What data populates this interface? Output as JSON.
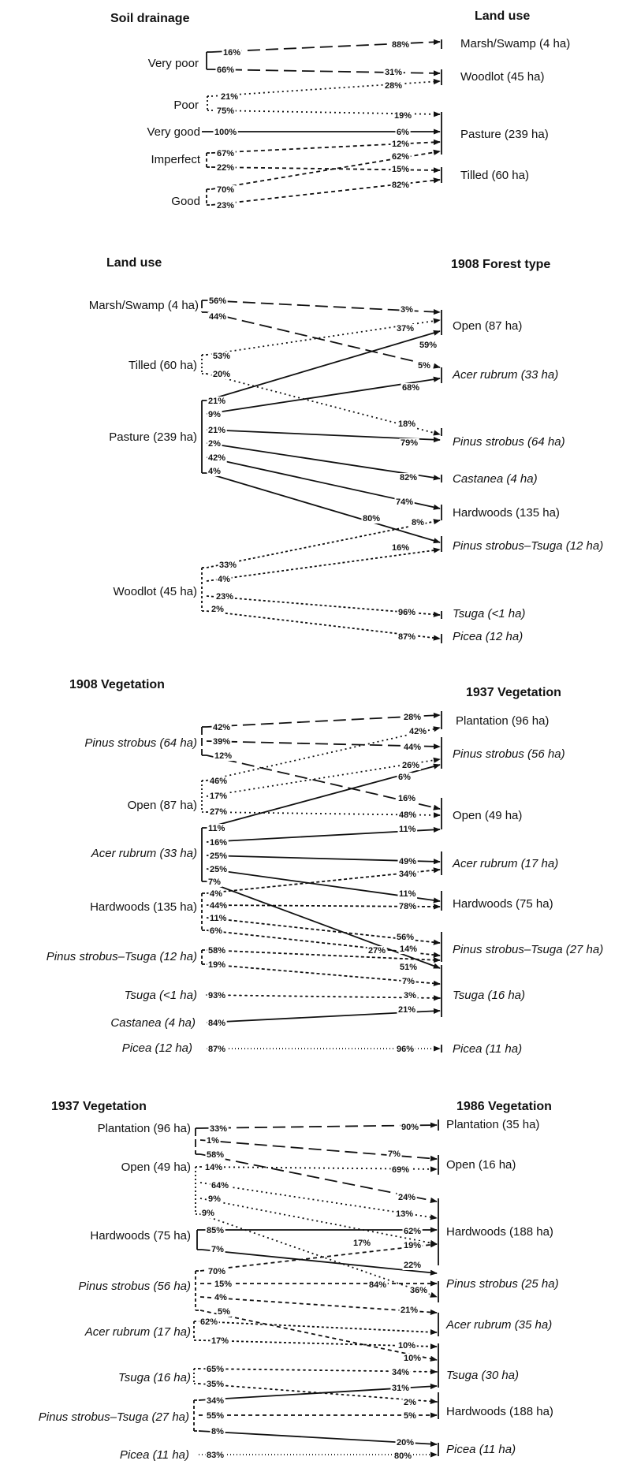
{
  "panels": [
    {
      "left_header": "Soil drainage",
      "right_header": "Land use",
      "left_groups": [
        {
          "label": "Very poor",
          "italic": false,
          "pcts": [
            "16%",
            "66%"
          ]
        },
        {
          "label": "Poor",
          "italic": false,
          "pcts": [
            "21%",
            "75%"
          ]
        },
        {
          "label": "Very good",
          "italic": false,
          "pcts": [
            "100%"
          ]
        },
        {
          "label": "Imperfect",
          "italic": false,
          "pcts": [
            "67%",
            "22%"
          ]
        },
        {
          "label": "Good",
          "italic": false,
          "pcts": [
            "70%",
            "23%"
          ]
        }
      ],
      "right_groups": [
        {
          "label": "Marsh/Swamp (4 ha)",
          "italic": false,
          "pcts": [
            "88%"
          ]
        },
        {
          "label": "Woodlot (45 ha)",
          "italic": false,
          "pcts": [
            "31%",
            "28%"
          ]
        },
        {
          "label": "Pasture (239 ha)",
          "italic": false,
          "pcts": [
            "19%",
            "6%",
            "12%",
            "62%"
          ]
        },
        {
          "label": "Tilled (60 ha)",
          "italic": false,
          "pcts": [
            "15%",
            "82%"
          ]
        }
      ]
    },
    {
      "left_header": "Land use",
      "right_header": "1908 Forest type",
      "left_groups": [
        {
          "label": "Marsh/Swamp (4 ha)",
          "italic": false,
          "pcts": [
            "56%",
            "44%"
          ]
        },
        {
          "label": "Tilled (60 ha)",
          "italic": false,
          "pcts": [
            "53%",
            "20%"
          ]
        },
        {
          "label": "Pasture (239 ha)",
          "italic": false,
          "pcts": [
            "21%",
            "9%",
            "21%",
            "2%",
            "42%",
            "4%"
          ]
        },
        {
          "label": "Woodlot (45 ha)",
          "italic": false,
          "pcts": [
            "33%",
            "4%",
            "23%",
            "2%"
          ]
        }
      ],
      "right_groups": [
        {
          "label": "Open (87 ha)",
          "italic": false,
          "pcts": [
            "3%",
            "37%",
            "59%"
          ]
        },
        {
          "label": "Acer rubrum (33 ha)",
          "italic": true,
          "pcts": [
            "5%",
            "68%"
          ]
        },
        {
          "label": "Pinus strobus (64 ha)",
          "italic": true,
          "pcts": [
            "18%",
            "79%"
          ]
        },
        {
          "label": "Castanea (4 ha)",
          "italic": true,
          "pcts": [
            "82%"
          ]
        },
        {
          "label": "Hardwoods (135 ha)",
          "italic": false,
          "pcts": [
            "74%"
          ]
        },
        {
          "label": "Pinus strobus–Tsuga (12 ha)",
          "italic": true,
          "pcts": [
            "80%",
            "8%",
            "16%"
          ]
        },
        {
          "label": "Tsuga (<1 ha)",
          "italic": true,
          "pcts": [
            "96%"
          ]
        },
        {
          "label": "Picea (12 ha)",
          "italic": true,
          "pcts": [
            "87%"
          ]
        }
      ]
    },
    {
      "left_header": "1908 Vegetation",
      "right_header": "1937 Vegetation",
      "left_groups": [
        {
          "label": "Pinus strobus (64 ha)",
          "italic": true,
          "pcts": [
            "42%",
            "39%",
            "12%"
          ]
        },
        {
          "label": "Open (87 ha)",
          "italic": false,
          "pcts": [
            "46%",
            "17%",
            "27%"
          ]
        },
        {
          "label": "Acer rubrum (33 ha)",
          "italic": true,
          "pcts": [
            "11%",
            "16%",
            "25%",
            "25%",
            "7%"
          ]
        },
        {
          "label": "Hardwoods (135 ha)",
          "italic": false,
          "pcts": [
            "4%",
            "44%",
            "11%",
            "6%"
          ]
        },
        {
          "label": "Pinus strobus–Tsuga (12 ha)",
          "italic": true,
          "pcts": [
            "58%",
            "19%"
          ]
        },
        {
          "label": "Tsuga (<1 ha)",
          "italic": true,
          "pcts": [
            "93%"
          ]
        },
        {
          "label": "Castanea (4 ha)",
          "italic": true,
          "pcts": [
            "84%"
          ]
        },
        {
          "label": "Picea (12 ha)",
          "italic": true,
          "pcts": [
            "87%"
          ]
        }
      ],
      "right_groups": [
        {
          "label": "Plantation (96 ha)",
          "italic": false,
          "pcts": [
            "28%"
          ]
        },
        {
          "label": "Pinus strobus (56 ha)",
          "italic": true,
          "pcts": [
            "42%",
            "44%",
            "26%",
            "6%"
          ]
        },
        {
          "label": "Open (49 ha)",
          "italic": false,
          "pcts": [
            "16%",
            "48%",
            "11%"
          ]
        },
        {
          "label": "Acer rubrum (17 ha)",
          "italic": true,
          "pcts": [
            "49%",
            "34%"
          ]
        },
        {
          "label": "Hardwoods (75 ha)",
          "italic": false,
          "pcts": [
            "11%",
            "78%"
          ]
        },
        {
          "label": "Pinus strobus–Tsuga (27 ha)",
          "italic": true,
          "pcts": [
            "56%",
            "27%",
            "14%"
          ]
        },
        {
          "label": "Tsuga (16 ha)",
          "italic": true,
          "pcts": [
            "51%",
            "7%",
            "3%",
            "21%"
          ]
        },
        {
          "label": "Picea (11 ha)",
          "italic": true,
          "pcts": [
            "96%"
          ]
        }
      ]
    },
    {
      "left_header": "1937 Vegetation",
      "right_header": "1986 Vegetation",
      "left_groups": [
        {
          "label": "Plantation (96 ha)",
          "italic": false,
          "pcts": [
            "33%",
            "1%",
            "58%"
          ]
        },
        {
          "label": "Open (49 ha)",
          "italic": false,
          "pcts": [
            "14%",
            "64%",
            "9%",
            "9%"
          ]
        },
        {
          "label": "Hardwoods (75 ha)",
          "italic": false,
          "pcts": [
            "85%",
            "7%"
          ]
        },
        {
          "label": "Pinus strobus (56 ha)",
          "italic": true,
          "pcts": [
            "70%",
            "15%",
            "4%",
            "5%"
          ]
        },
        {
          "label": "Acer rubrum (17 ha)",
          "italic": true,
          "pcts": [
            "62%",
            "17%"
          ]
        },
        {
          "label": "Tsuga (16 ha)",
          "italic": true,
          "pcts": [
            "65%",
            "35%"
          ]
        },
        {
          "label": "Pinus strobus–Tsuga (27 ha)",
          "italic": true,
          "pcts": [
            "34%",
            "55%",
            "8%"
          ]
        },
        {
          "label": "Picea (11 ha)",
          "italic": true,
          "pcts": [
            "83%"
          ]
        }
      ],
      "right_groups": [
        {
          "label": "Plantation (35 ha)",
          "italic": false,
          "pcts": [
            "90%"
          ]
        },
        {
          "label": "Open (16 ha)",
          "italic": false,
          "pcts": [
            "7%",
            "69%"
          ]
        },
        {
          "label": "Hardwoods (188 ha)",
          "italic": false,
          "pcts": [
            "24%",
            "13%",
            "17%",
            "62%",
            "19%"
          ]
        },
        {
          "label": "Pinus strobus (25 ha)",
          "italic": true,
          "pcts": [
            "22%",
            "84%",
            "36%"
          ]
        },
        {
          "label": "Acer rubrum (35 ha)",
          "italic": true,
          "pcts": [
            "21%"
          ]
        },
        {
          "label": "Tsuga (30 ha)",
          "italic": true,
          "pcts": [
            "10%",
            "10%",
            "34%"
          ]
        },
        {
          "label": "Hardwoods (188 ha)",
          "italic": false,
          "pcts": [
            "31%",
            "2%",
            "5%"
          ]
        },
        {
          "label": "Picea (11 ha)",
          "italic": true,
          "pcts": [
            "20%",
            "80%"
          ]
        }
      ]
    }
  ]
}
